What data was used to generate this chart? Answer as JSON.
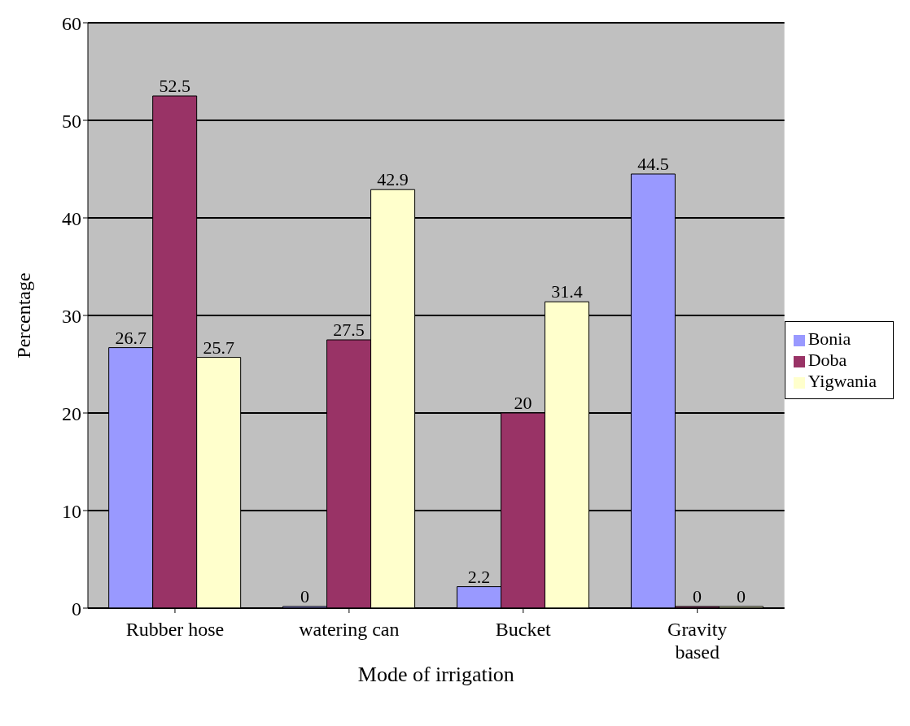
{
  "chart_data": {
    "type": "bar",
    "xlabel": "Mode of irrigation",
    "ylabel": "Percentage",
    "categories": [
      "Rubber hose",
      "watering can",
      "Bucket",
      "Gravity based"
    ],
    "series": [
      {
        "name": "Bonia",
        "color": "#9999ff",
        "values": [
          26.7,
          0,
          2.2,
          44.5
        ]
      },
      {
        "name": "Doba",
        "color": "#993366",
        "values": [
          52.5,
          27.5,
          20,
          0
        ]
      },
      {
        "name": "Yigwania",
        "color": "#ffffcc",
        "values": [
          25.7,
          42.9,
          31.4,
          0
        ]
      }
    ],
    "ylim": [
      0,
      60
    ],
    "yticks": [
      0,
      10,
      20,
      30,
      40,
      50,
      60
    ],
    "grid": "y",
    "legend": "right",
    "data_labels": true
  }
}
